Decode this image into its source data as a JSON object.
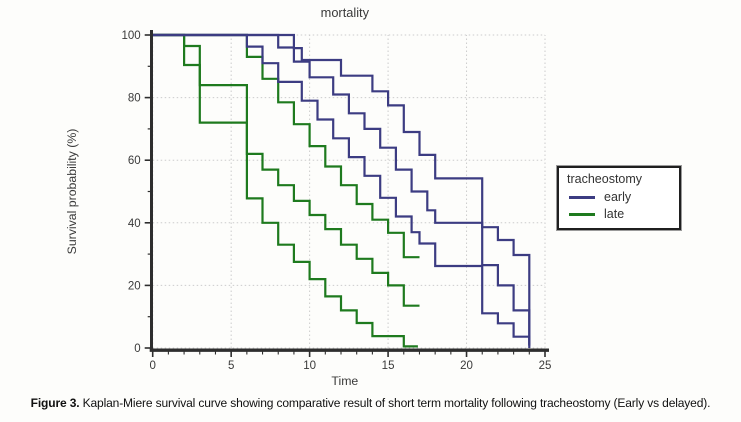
{
  "caption": {
    "prefix": "Figure 3.",
    "text": " Kaplan-Miere survival curve showing comparative result of short term mortality following tracheostomy (Early vs delayed)."
  },
  "chart_data": {
    "type": "line",
    "subtype": "kaplan-meier-step",
    "title": "mortality",
    "xlabel": "Time",
    "ylabel": "Survival probability (%)",
    "xlim": [
      0,
      25
    ],
    "ylim": [
      0,
      100
    ],
    "xticks": [
      0,
      5,
      10,
      15,
      20,
      25
    ],
    "yticks": [
      0,
      20,
      40,
      60,
      80,
      100
    ],
    "x_minor_step": 1,
    "y_minor_step": 10,
    "grid": true,
    "colors": {
      "early": "#3c3c82",
      "late": "#1e7a1e",
      "axis": "#2e2e2e",
      "grid": "#cccccc",
      "text": "#3a3a3a"
    },
    "legend": {
      "title": "tracheostomy",
      "entries": [
        {
          "label": "early",
          "group": "early"
        },
        {
          "label": "late",
          "group": "late"
        }
      ]
    },
    "series": [
      {
        "name": "early-upper-ci",
        "group": "early",
        "role": "upper-ci",
        "points": [
          [
            0,
            100
          ],
          [
            9,
            95.8
          ],
          [
            9.5,
            92
          ],
          [
            12,
            87
          ],
          [
            14,
            82
          ],
          [
            15,
            77.5
          ],
          [
            16,
            69
          ],
          [
            17,
            61.7
          ],
          [
            18,
            54.2
          ],
          [
            21,
            38.6
          ],
          [
            22,
            34.5
          ],
          [
            23,
            29.7
          ],
          [
            24,
            1
          ]
        ]
      },
      {
        "name": "early-estimate",
        "group": "early",
        "role": "estimate",
        "points": [
          [
            0,
            100
          ],
          [
            8,
            96
          ],
          [
            9,
            91.5
          ],
          [
            10,
            86.5
          ],
          [
            11.5,
            81
          ],
          [
            12.5,
            75
          ],
          [
            13.5,
            70
          ],
          [
            14.5,
            64
          ],
          [
            15.5,
            57
          ],
          [
            16.5,
            50
          ],
          [
            17.5,
            44
          ],
          [
            18,
            40
          ],
          [
            21,
            26.5
          ],
          [
            22,
            20
          ],
          [
            23,
            12
          ],
          [
            24,
            0
          ]
        ]
      },
      {
        "name": "early-lower-ci",
        "group": "early",
        "role": "lower-ci",
        "points": [
          [
            0,
            100
          ],
          [
            6,
            96.3
          ],
          [
            7,
            91
          ],
          [
            8,
            85
          ],
          [
            9.5,
            79
          ],
          [
            10.5,
            73
          ],
          [
            11.5,
            67
          ],
          [
            12.5,
            61
          ],
          [
            13.5,
            55
          ],
          [
            14.5,
            48
          ],
          [
            15.5,
            42
          ],
          [
            16.5,
            37
          ],
          [
            17,
            33.4
          ],
          [
            18,
            26.2
          ],
          [
            21,
            11.1
          ],
          [
            22,
            7.9
          ],
          [
            23,
            3.6
          ],
          [
            24,
            0.7
          ]
        ]
      },
      {
        "name": "late-upper-ci",
        "group": "late",
        "role": "upper-ci",
        "points": [
          [
            0,
            100
          ],
          [
            6,
            93
          ],
          [
            7,
            86
          ],
          [
            8,
            78.5
          ],
          [
            9,
            71.5
          ],
          [
            10,
            64.5
          ],
          [
            11,
            58
          ],
          [
            12,
            52
          ],
          [
            13,
            46
          ],
          [
            14,
            41
          ],
          [
            15,
            36.8
          ],
          [
            16,
            29
          ],
          [
            17,
            29
          ]
        ]
      },
      {
        "name": "late-estimate",
        "group": "late",
        "role": "estimate",
        "points": [
          [
            0,
            100
          ],
          [
            2,
            96.5
          ],
          [
            3,
            84
          ],
          [
            6,
            62
          ],
          [
            7,
            57
          ],
          [
            8,
            52
          ],
          [
            9,
            47
          ],
          [
            10,
            42.5
          ],
          [
            11,
            38
          ],
          [
            12,
            33
          ],
          [
            13,
            28.5
          ],
          [
            14,
            24
          ],
          [
            15,
            20
          ],
          [
            16,
            13.5
          ],
          [
            17,
            13.5
          ]
        ]
      },
      {
        "name": "late-lower-ci",
        "group": "late",
        "role": "lower-ci",
        "points": [
          [
            0,
            100
          ],
          [
            2,
            90.4
          ],
          [
            3,
            72
          ],
          [
            6,
            47.8
          ],
          [
            7,
            40
          ],
          [
            8,
            33
          ],
          [
            9,
            27.5
          ],
          [
            10,
            22
          ],
          [
            11,
            16.5
          ],
          [
            12,
            12
          ],
          [
            13,
            8
          ],
          [
            14,
            3.8
          ],
          [
            16,
            0.5
          ],
          [
            16.9,
            0.5
          ]
        ]
      }
    ]
  }
}
